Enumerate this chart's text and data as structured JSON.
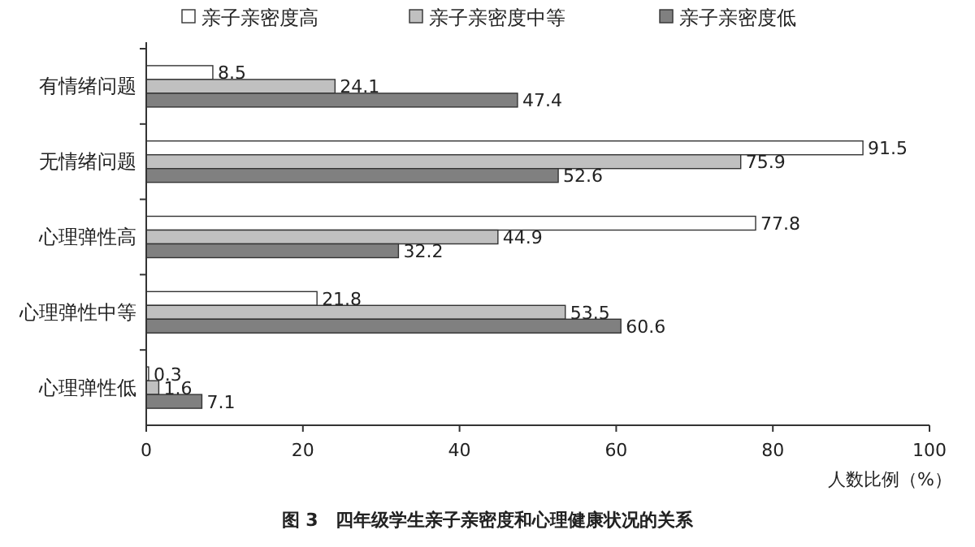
{
  "chart_data": {
    "type": "bar",
    "orientation": "horizontal",
    "title": "图 3　四年级学生亲子亲密度和心理健康状况的关系",
    "xlabel": "人数比例（%）",
    "categories": [
      "有情绪问题",
      "无情绪问题",
      "心理弹性高",
      "心理弹性中等",
      "心理弹性低"
    ],
    "series": [
      {
        "name": "亲子亲密度高",
        "color": "#ffffff",
        "values": [
          8.5,
          91.5,
          77.8,
          21.8,
          0.3
        ]
      },
      {
        "name": "亲子亲密度中等",
        "color": "#c0c0c0",
        "values": [
          24.1,
          75.9,
          44.9,
          53.5,
          1.6
        ]
      },
      {
        "name": "亲子亲密度低",
        "color": "#808080",
        "values": [
          47.4,
          52.6,
          32.2,
          60.6,
          7.1
        ]
      }
    ],
    "xlim": [
      0,
      100
    ],
    "xticks": [
      0,
      20,
      40,
      60,
      80,
      100
    ],
    "data_labels": true,
    "legend": "top",
    "grid": false
  }
}
